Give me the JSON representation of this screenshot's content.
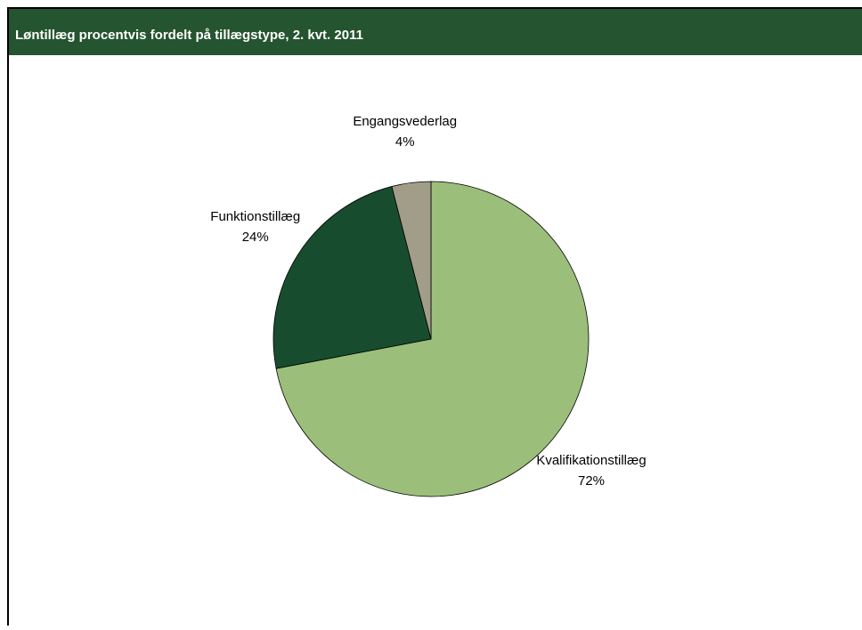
{
  "chart_data": {
    "type": "pie",
    "title": "Løntillæg procentvis fordelt på tillægstype, 2. kvt. 2011",
    "categories": [
      "Kvalifikationstillæg",
      "Funktionstillæg",
      "Engangsvederlag"
    ],
    "values": [
      72,
      24,
      4
    ],
    "value_labels": [
      "72%",
      "24%",
      "4%"
    ],
    "colors": [
      "#9bbf7a",
      "#174d2e",
      "#a19d88"
    ]
  }
}
